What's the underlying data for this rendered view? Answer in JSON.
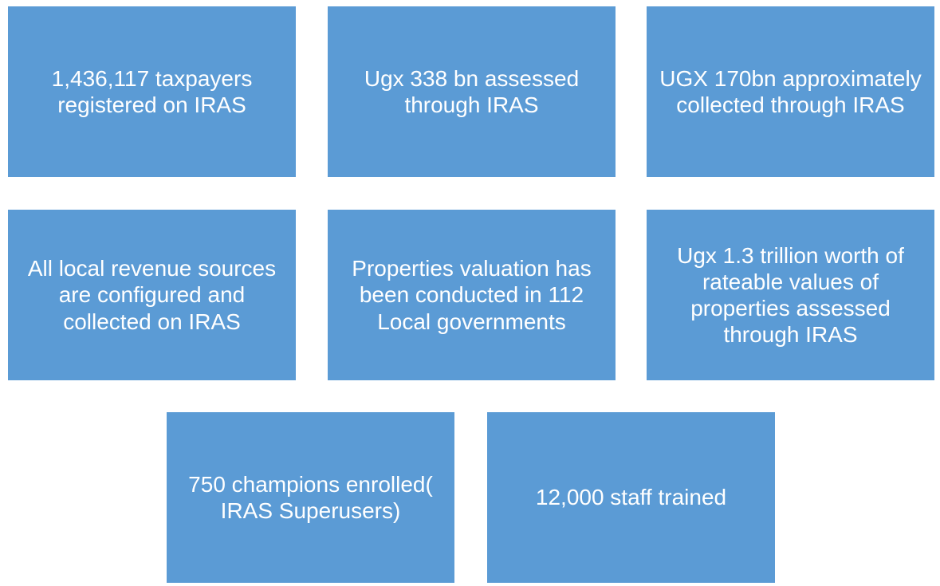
{
  "boxes": [
    {
      "text": "1,436,117 taxpayers registered on IRAS"
    },
    {
      "text": "Ugx 338 bn assessed through IRAS"
    },
    {
      "text": "UGX 170bn approximately collected through IRAS"
    },
    {
      "text": "All local revenue sources are configured and collected on IRAS"
    },
    {
      "text": "Properties valuation has been conducted in 112 Local governments"
    },
    {
      "text": "Ugx 1.3 trillion worth of rateable values of properties assessed through IRAS"
    },
    {
      "text": "750 champions enrolled( IRAS Superusers)"
    },
    {
      "text": "12,000 staff trained"
    }
  ]
}
